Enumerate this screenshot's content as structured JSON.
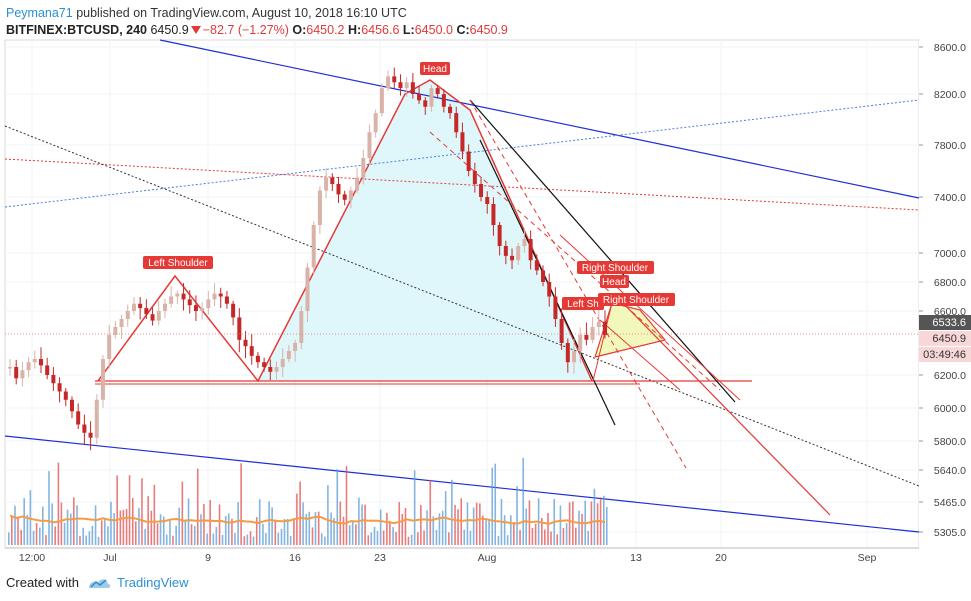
{
  "header": {
    "author": "Peymana71",
    "published_text": "published on TradingView.com, August 10, 2018 16:10 UTC",
    "symbol": "BITFINEX:BTCUSD, 240",
    "last": "6450.9",
    "change": "−82.7 (−1.27%)",
    "o_label": "O:",
    "o_value": "6450.2",
    "h_label": "H:",
    "h_value": "6456.6",
    "l_label": "L:",
    "l_value": "6450.0",
    "c_label": "C:",
    "c_value": "6450.9"
  },
  "footer": {
    "created_with": "Created with",
    "brand": "TradingView"
  },
  "colors": {
    "up": "#5b9bd5",
    "down": "#e05050",
    "candle_up": "#d9b3a8",
    "candle_down": "#c62828",
    "accent": "#2b8fd4",
    "trend_blue": "#1f2ed6",
    "pattern_red": "#e53935",
    "fill_cyan": "#dff7fb",
    "fill_yellow": "#f1f6b5"
  },
  "chart_data": {
    "type": "candlestick",
    "y_ticks": [
      "8600.0",
      "8200.0",
      "7800.0",
      "7400.0",
      "7000.0",
      "6800.0",
      "6600.0",
      "6400.0",
      "6200.0",
      "6000.0",
      "5800.0",
      "5640.0",
      "5465.0",
      "5305.0"
    ],
    "x_ticks": [
      "12:00",
      "Jul",
      "9",
      "16",
      "23",
      "Aug",
      "13",
      "20",
      "Sep"
    ],
    "price_labels": {
      "current": "6533.6",
      "last": "6450.9",
      "countdown": "03:49:46"
    },
    "annotations": [
      "Left Shoulder",
      "Head",
      "Right Shoulder",
      "Left Sh",
      "Head",
      "Right Shoulder"
    ],
    "close_series": [
      6250,
      6180,
      6230,
      6280,
      6300,
      6260,
      6200,
      6150,
      6100,
      6050,
      5980,
      5900,
      5850,
      5820,
      6050,
      6300,
      6450,
      6500,
      6550,
      6600,
      6650,
      6620,
      6580,
      6540,
      6600,
      6650,
      6700,
      6720,
      6680,
      6640,
      6600,
      6620,
      6680,
      6720,
      6700,
      6650,
      6560,
      6420,
      6380,
      6320,
      6280,
      6250,
      6220,
      6250,
      6300,
      6350,
      6400,
      6600,
      6900,
      7200,
      7450,
      7550,
      7500,
      7420,
      7380,
      7450,
      7550,
      7700,
      7900,
      8050,
      8250,
      8350,
      8300,
      8250,
      8300,
      8200,
      8150,
      8100,
      8250,
      8200,
      8100,
      8050,
      7900,
      7750,
      7600,
      7500,
      7400,
      7350,
      7200,
      7050,
      6980,
      6950,
      7050,
      7100,
      6950,
      6880,
      6800,
      6700,
      6550,
      6400,
      6280,
      6350,
      6450,
      6420,
      6500,
      6533,
      6450
    ]
  }
}
